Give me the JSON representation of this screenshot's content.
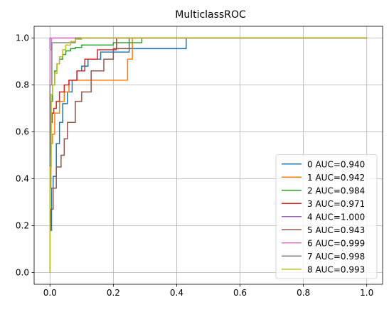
{
  "chart_data": {
    "type": "line",
    "title": "MulticlassROC",
    "xlabel": "",
    "ylabel": "",
    "xlim": [
      -0.05,
      1.05
    ],
    "ylim": [
      -0.05,
      1.05
    ],
    "xticks": [
      0.0,
      0.2,
      0.4,
      0.6,
      0.8,
      1.0
    ],
    "xtick_labels": [
      "0.0",
      "0.2",
      "0.4",
      "0.6",
      "0.8",
      "1.0"
    ],
    "yticks": [
      0.0,
      0.2,
      0.4,
      0.6,
      0.8,
      1.0
    ],
    "ytick_labels": [
      "0.0",
      "0.2",
      "0.4",
      "0.6",
      "0.8",
      "1.0"
    ],
    "grid": true,
    "legend_position": "lower-right",
    "series": [
      {
        "name": "0 AUC=0.940",
        "color": "#1f77b4",
        "x": [
          0,
          0,
          0.005,
          0.005,
          0.01,
          0.01,
          0.02,
          0.02,
          0.03,
          0.03,
          0.04,
          0.04,
          0.055,
          0.055,
          0.07,
          0.07,
          0.085,
          0.085,
          0.1,
          0.1,
          0.12,
          0.12,
          0.16,
          0.16,
          0.25,
          0.25,
          0.43,
          0.43,
          1.0
        ],
        "y": [
          0,
          0.18,
          0.18,
          0.36,
          0.36,
          0.41,
          0.41,
          0.55,
          0.55,
          0.64,
          0.64,
          0.72,
          0.72,
          0.77,
          0.77,
          0.82,
          0.82,
          0.86,
          0.86,
          0.88,
          0.88,
          0.91,
          0.91,
          0.94,
          0.94,
          0.955,
          0.955,
          1.0,
          1.0
        ]
      },
      {
        "name": "1 AUC=0.942",
        "color": "#ff7f0e",
        "x": [
          0,
          0,
          0.003,
          0.003,
          0.008,
          0.008,
          0.015,
          0.015,
          0.03,
          0.03,
          0.045,
          0.045,
          0.06,
          0.06,
          0.245,
          0.245,
          0.26,
          0.26,
          1.0
        ],
        "y": [
          0,
          0.36,
          0.36,
          0.55,
          0.55,
          0.59,
          0.59,
          0.68,
          0.68,
          0.73,
          0.73,
          0.77,
          0.77,
          0.82,
          0.82,
          0.91,
          0.91,
          1.0,
          1.0
        ]
      },
      {
        "name": "2 AUC=0.984",
        "color": "#2ca02c",
        "x": [
          0,
          0,
          0.003,
          0.003,
          0.008,
          0.008,
          0.015,
          0.015,
          0.022,
          0.022,
          0.03,
          0.03,
          0.04,
          0.04,
          0.05,
          0.05,
          0.065,
          0.065,
          0.08,
          0.08,
          0.1,
          0.1,
          0.2,
          0.2,
          0.29,
          0.29,
          1.0
        ],
        "y": [
          0,
          0.55,
          0.55,
          0.73,
          0.73,
          0.8,
          0.8,
          0.86,
          0.86,
          0.89,
          0.89,
          0.91,
          0.91,
          0.93,
          0.93,
          0.945,
          0.945,
          0.955,
          0.955,
          0.96,
          0.96,
          0.97,
          0.97,
          0.98,
          0.98,
          1.0,
          1.0
        ]
      },
      {
        "name": "3 AUC=0.971",
        "color": "#d62728",
        "x": [
          0,
          0,
          0.003,
          0.003,
          0.007,
          0.007,
          0.012,
          0.012,
          0.02,
          0.02,
          0.03,
          0.03,
          0.045,
          0.045,
          0.06,
          0.06,
          0.085,
          0.085,
          0.11,
          0.11,
          0.15,
          0.15,
          0.21,
          0.21,
          1.0
        ],
        "y": [
          0,
          0.5,
          0.5,
          0.64,
          0.64,
          0.68,
          0.68,
          0.7,
          0.7,
          0.73,
          0.73,
          0.77,
          0.77,
          0.8,
          0.8,
          0.82,
          0.82,
          0.86,
          0.86,
          0.91,
          0.91,
          0.95,
          0.95,
          1.0,
          1.0
        ]
      },
      {
        "name": "4 AUC=1.000",
        "color": "#9467bd",
        "x": [
          0,
          0,
          0.0,
          1.0
        ],
        "y": [
          0,
          0.8,
          1.0,
          1.0
        ]
      },
      {
        "name": "5 AUC=0.943",
        "color": "#8c564b",
        "x": [
          0,
          0,
          0.003,
          0.003,
          0.01,
          0.01,
          0.02,
          0.02,
          0.035,
          0.035,
          0.045,
          0.045,
          0.055,
          0.055,
          0.08,
          0.08,
          0.1,
          0.1,
          0.13,
          0.13,
          0.17,
          0.17,
          0.2,
          0.2,
          0.25,
          0.25,
          1.0
        ],
        "y": [
          0,
          0.18,
          0.18,
          0.27,
          0.27,
          0.36,
          0.36,
          0.45,
          0.45,
          0.5,
          0.5,
          0.57,
          0.57,
          0.64,
          0.64,
          0.73,
          0.73,
          0.77,
          0.77,
          0.86,
          0.86,
          0.91,
          0.91,
          0.955,
          0.955,
          1.0,
          1.0
        ]
      },
      {
        "name": "6 AUC=0.999",
        "color": "#e377c2",
        "x": [
          0,
          0,
          0.005,
          0.005,
          1.0
        ],
        "y": [
          0,
          0.95,
          0.95,
          1.0,
          1.0
        ]
      },
      {
        "name": "7 AUC=0.998",
        "color": "#7f7f7f",
        "x": [
          0,
          0,
          0.006,
          0.006,
          0.08,
          0.08,
          1.0
        ],
        "y": [
          0,
          0.8,
          0.8,
          0.98,
          0.98,
          1.0,
          1.0
        ]
      },
      {
        "name": "8 AUC=0.993",
        "color": "#bcbd22",
        "x": [
          0,
          0,
          0.004,
          0.004,
          0.008,
          0.008,
          0.015,
          0.015,
          0.022,
          0.022,
          0.03,
          0.03,
          0.04,
          0.04,
          0.05,
          0.05,
          0.065,
          0.065,
          0.08,
          0.08,
          0.1,
          0.1,
          1.0
        ],
        "y": [
          0,
          0.45,
          0.45,
          0.76,
          0.76,
          0.8,
          0.8,
          0.85,
          0.85,
          0.89,
          0.89,
          0.92,
          0.92,
          0.95,
          0.95,
          0.97,
          0.97,
          0.985,
          0.985,
          0.995,
          0.995,
          1.0,
          1.0
        ]
      }
    ]
  }
}
